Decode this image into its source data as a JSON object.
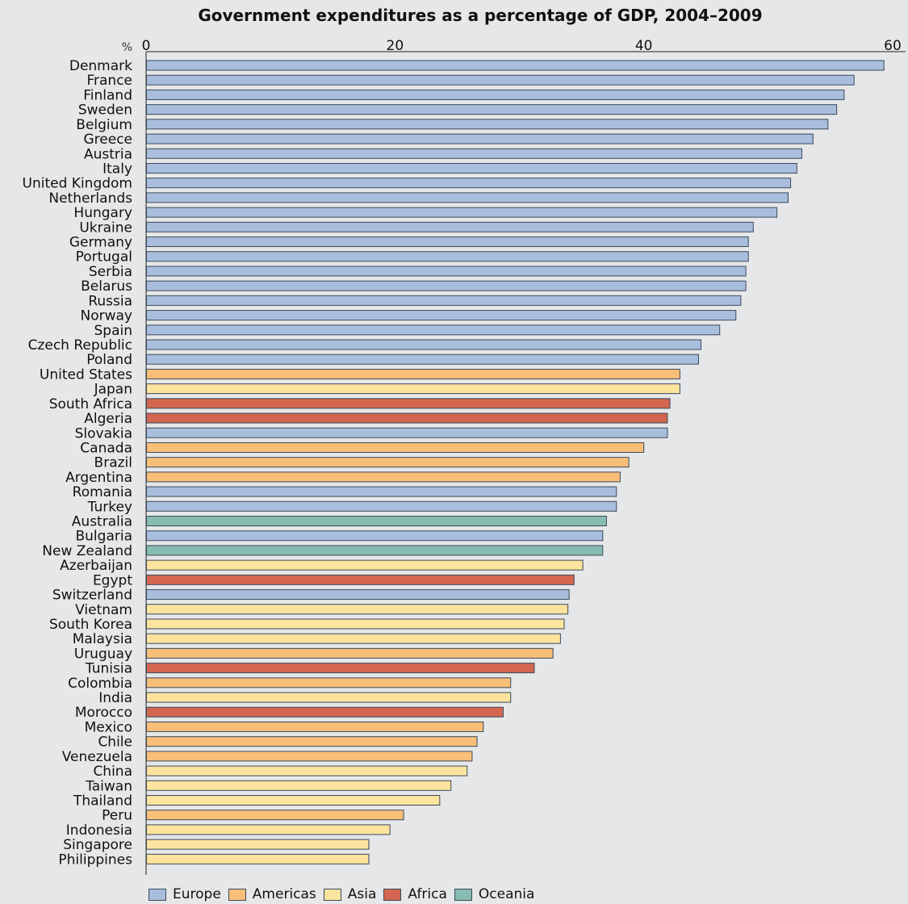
{
  "chart_data": {
    "type": "bar",
    "orientation": "horizontal",
    "title": "Government expenditures as a percentage of GDP, 2004–2009",
    "unit_label": "%",
    "xlim": [
      0,
      60
    ],
    "xticks": [
      "0",
      "20",
      "40",
      "60"
    ],
    "grid": false,
    "legend_position": "bottom-left",
    "colors": {
      "Europe": "#a9bedc",
      "Americas": "#f9be78",
      "Asia": "#fde49e",
      "Africa": "#d3664f",
      "Oceania": "#87bcb0"
    },
    "legend": [
      "Europe",
      "Americas",
      "Asia",
      "Africa",
      "Oceania"
    ],
    "bars": [
      {
        "label": "Denmark",
        "value": 59.3,
        "region": "Europe"
      },
      {
        "label": "France",
        "value": 56.9,
        "region": "Europe"
      },
      {
        "label": "Finland",
        "value": 56.1,
        "region": "Europe"
      },
      {
        "label": "Sweden",
        "value": 55.5,
        "region": "Europe"
      },
      {
        "label": "Belgium",
        "value": 54.8,
        "region": "Europe"
      },
      {
        "label": "Greece",
        "value": 53.6,
        "region": "Europe"
      },
      {
        "label": "Austria",
        "value": 52.7,
        "region": "Europe"
      },
      {
        "label": "Italy",
        "value": 52.3,
        "region": "Europe"
      },
      {
        "label": "United Kingdom",
        "value": 51.8,
        "region": "Europe"
      },
      {
        "label": "Netherlands",
        "value": 51.6,
        "region": "Europe"
      },
      {
        "label": "Hungary",
        "value": 50.7,
        "region": "Europe"
      },
      {
        "label": "Ukraine",
        "value": 48.8,
        "region": "Europe"
      },
      {
        "label": "Germany",
        "value": 48.4,
        "region": "Europe"
      },
      {
        "label": "Portugal",
        "value": 48.4,
        "region": "Europe"
      },
      {
        "label": "Serbia",
        "value": 48.2,
        "region": "Europe"
      },
      {
        "label": "Belarus",
        "value": 48.2,
        "region": "Europe"
      },
      {
        "label": "Russia",
        "value": 47.8,
        "region": "Europe"
      },
      {
        "label": "Norway",
        "value": 47.4,
        "region": "Europe"
      },
      {
        "label": "Spain",
        "value": 46.1,
        "region": "Europe"
      },
      {
        "label": "Czech Republic",
        "value": 44.6,
        "region": "Europe"
      },
      {
        "label": "Poland",
        "value": 44.4,
        "region": "Europe"
      },
      {
        "label": "United States",
        "value": 42.9,
        "region": "Americas"
      },
      {
        "label": "Japan",
        "value": 42.9,
        "region": "Asia"
      },
      {
        "label": "South Africa",
        "value": 42.1,
        "region": "Africa"
      },
      {
        "label": "Algeria",
        "value": 41.9,
        "region": "Africa"
      },
      {
        "label": "Slovakia",
        "value": 41.9,
        "region": "Europe"
      },
      {
        "label": "Canada",
        "value": 40.0,
        "region": "Americas"
      },
      {
        "label": "Brazil",
        "value": 38.8,
        "region": "Americas"
      },
      {
        "label": "Argentina",
        "value": 38.1,
        "region": "Americas"
      },
      {
        "label": "Romania",
        "value": 37.8,
        "region": "Europe"
      },
      {
        "label": "Turkey",
        "value": 37.8,
        "region": "Europe"
      },
      {
        "label": "Australia",
        "value": 37.0,
        "region": "Oceania"
      },
      {
        "label": "Bulgaria",
        "value": 36.7,
        "region": "Europe"
      },
      {
        "label": "New Zealand",
        "value": 36.7,
        "region": "Oceania"
      },
      {
        "label": "Azerbaijan",
        "value": 35.1,
        "region": "Asia"
      },
      {
        "label": "Egypt",
        "value": 34.4,
        "region": "Africa"
      },
      {
        "label": "Switzerland",
        "value": 34.0,
        "region": "Europe"
      },
      {
        "label": "Vietnam",
        "value": 33.9,
        "region": "Asia"
      },
      {
        "label": "South Korea",
        "value": 33.6,
        "region": "Asia"
      },
      {
        "label": "Malaysia",
        "value": 33.3,
        "region": "Asia"
      },
      {
        "label": "Uruguay",
        "value": 32.7,
        "region": "Americas"
      },
      {
        "label": "Tunisia",
        "value": 31.2,
        "region": "Africa"
      },
      {
        "label": "Colombia",
        "value": 29.3,
        "region": "Americas"
      },
      {
        "label": "India",
        "value": 29.3,
        "region": "Asia"
      },
      {
        "label": "Morocco",
        "value": 28.7,
        "region": "Africa"
      },
      {
        "label": "Mexico",
        "value": 27.1,
        "region": "Americas"
      },
      {
        "label": "Chile",
        "value": 26.6,
        "region": "Americas"
      },
      {
        "label": "Venezuela",
        "value": 26.2,
        "region": "Americas"
      },
      {
        "label": "China",
        "value": 25.8,
        "region": "Asia"
      },
      {
        "label": "Taiwan",
        "value": 24.5,
        "region": "Asia"
      },
      {
        "label": "Thailand",
        "value": 23.6,
        "region": "Asia"
      },
      {
        "label": "Peru",
        "value": 20.7,
        "region": "Americas"
      },
      {
        "label": "Indonesia",
        "value": 19.6,
        "region": "Asia"
      },
      {
        "label": "Singapore",
        "value": 17.9,
        "region": "Asia"
      },
      {
        "label": "Philippines",
        "value": 17.9,
        "region": "Asia"
      }
    ]
  }
}
